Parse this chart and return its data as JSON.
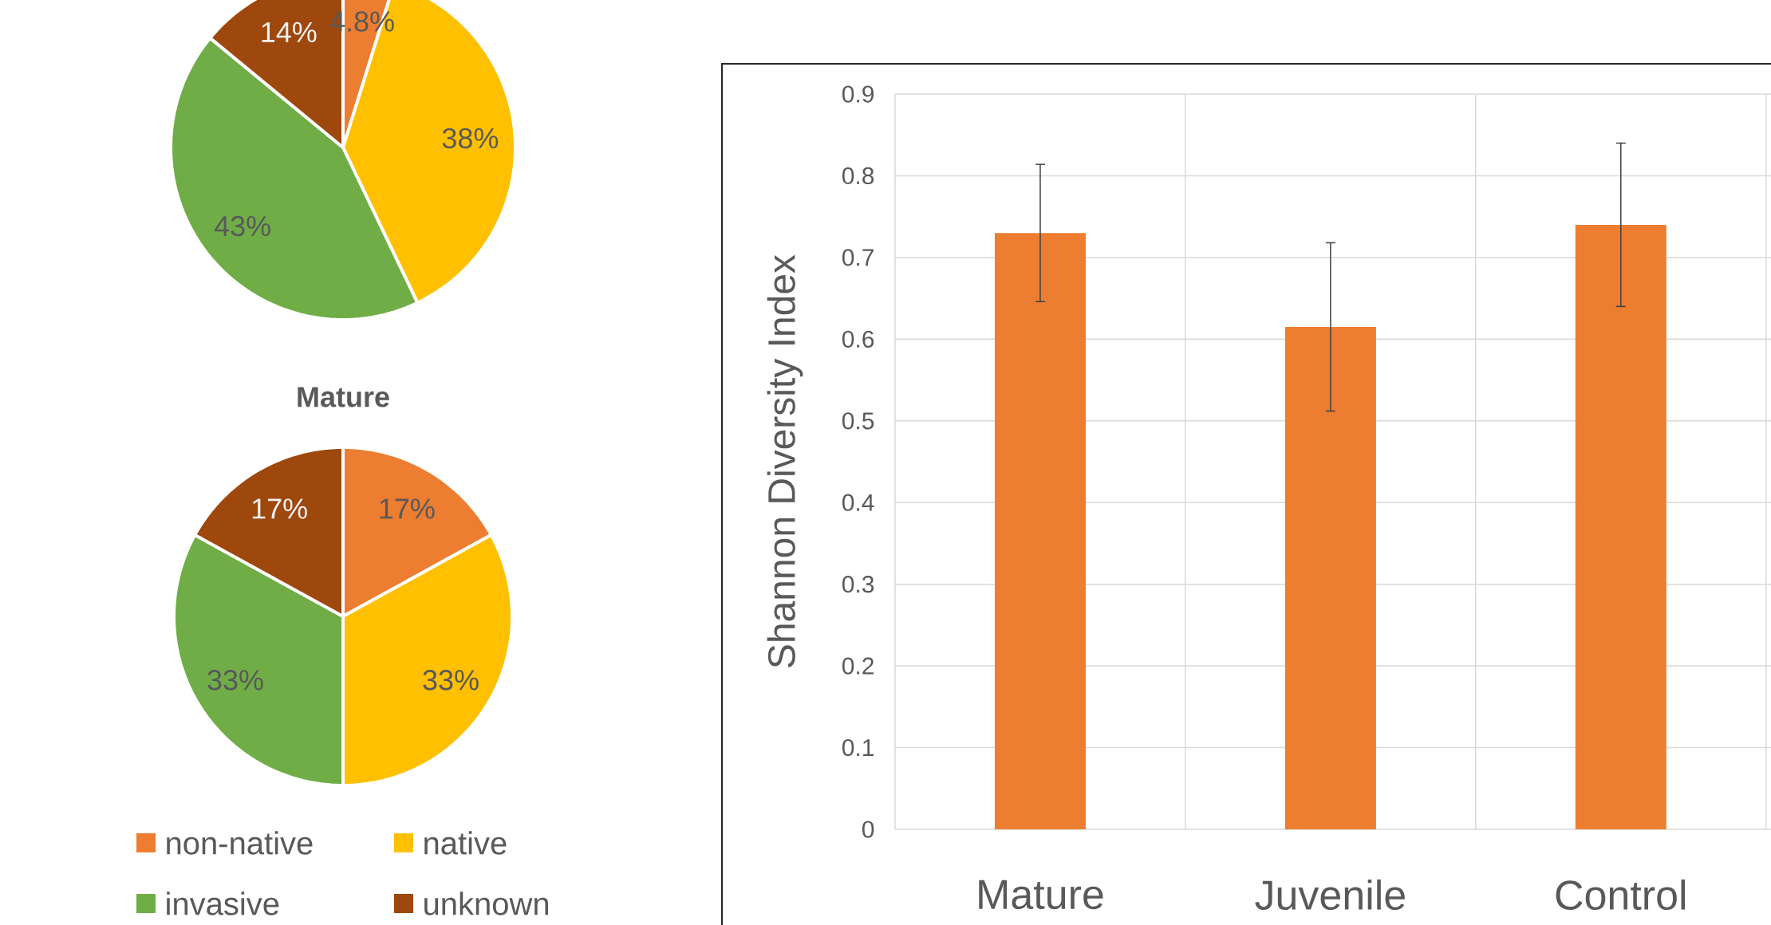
{
  "chart_data": [
    {
      "type": "pie",
      "categories": [
        null,
        null,
        null,
        null
      ],
      "values": [
        4.8,
        38,
        43,
        14
      ],
      "colors": [
        "#ed7d31",
        "#ffc000",
        "#70ad47",
        "#9e480e"
      ],
      "value_labels": [
        "4.8%",
        "38%",
        "43%",
        "14%"
      ],
      "legend": false
    },
    {
      "type": "pie",
      "title": "Mature",
      "categories": [
        "non-native",
        "native",
        "invasive",
        "unknown"
      ],
      "values": [
        17,
        33,
        33,
        17
      ],
      "colors": [
        "#ed7d31",
        "#ffc000",
        "#70ad47",
        "#9e480e"
      ],
      "value_labels": [
        "17%",
        "33%",
        "33%",
        "17%"
      ],
      "legend": "bottom"
    },
    {
      "type": "bar",
      "ylabel": "Shannon Diversity Index",
      "categories": [
        "Mature",
        "Juvenile",
        "Control"
      ],
      "values": [
        0.73,
        0.615,
        0.74
      ],
      "errors": [
        0.084,
        0.103,
        0.1
      ],
      "color": "#ed7d31",
      "ylim": [
        0,
        0.9
      ],
      "yticks": [
        0,
        0.1,
        0.2,
        0.3,
        0.4,
        0.5,
        0.6,
        0.7,
        0.8,
        0.9
      ],
      "grid": true
    }
  ]
}
